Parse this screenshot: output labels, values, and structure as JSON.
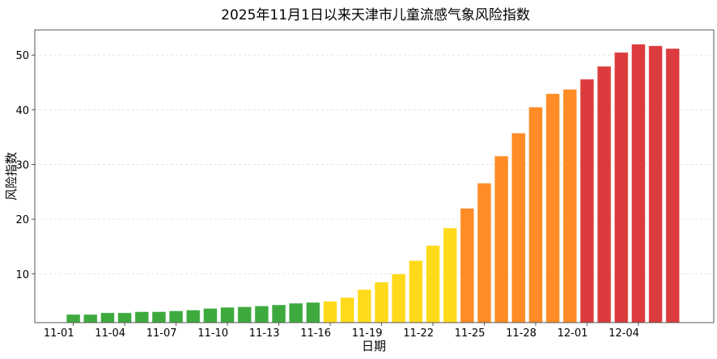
{
  "chart_data": {
    "type": "bar",
    "title": "2025年11月1日以来天津市儿童流感气象风险指数",
    "xlabel": "日期",
    "ylabel": "风险指数",
    "ylim": [
      1.1,
      54.6
    ],
    "yticks": [
      10,
      20,
      30,
      40,
      50
    ],
    "grid": "horizontal dashed",
    "categories": [
      "11-01",
      "11-02",
      "11-03",
      "11-04",
      "11-05",
      "11-06",
      "11-07",
      "11-08",
      "11-09",
      "11-10",
      "11-11",
      "11-12",
      "11-13",
      "11-14",
      "11-15",
      "11-16",
      "11-17",
      "11-18",
      "11-19",
      "11-20",
      "11-21",
      "11-22",
      "11-23",
      "11-24",
      "11-25",
      "11-26",
      "11-27",
      "11-28",
      "11-29",
      "11-30",
      "12-01",
      "12-02",
      "12-03",
      "12-04",
      "12-05",
      "12-06"
    ],
    "xtick_labels": [
      "11-01",
      "11-04",
      "11-07",
      "11-10",
      "11-13",
      "11-16",
      "11-19",
      "11-22",
      "11-25",
      "11-28",
      "12-01",
      "12-04"
    ],
    "values": [
      2.6,
      2.6,
      2.9,
      2.9,
      3.1,
      3.1,
      3.25,
      3.4,
      3.7,
      3.9,
      4.0,
      4.15,
      4.35,
      4.65,
      4.8,
      5.0,
      5.7,
      7.15,
      8.5,
      10.0,
      12.45,
      15.2,
      18.4,
      22.0,
      26.6,
      31.55,
      35.75,
      40.5,
      42.95,
      43.75,
      45.6,
      47.95,
      50.5,
      52.0,
      51.7,
      51.2
    ],
    "levels": [
      "green",
      "green",
      "green",
      "green",
      "green",
      "green",
      "green",
      "green",
      "green",
      "green",
      "green",
      "green",
      "green",
      "green",
      "green",
      "yellow",
      "yellow",
      "yellow",
      "yellow",
      "yellow",
      "yellow",
      "yellow",
      "yellow",
      "orange",
      "orange",
      "orange",
      "orange",
      "orange",
      "orange",
      "orange",
      "red",
      "red",
      "red",
      "red",
      "red",
      "red"
    ],
    "colors": {
      "green": "#3eaa3e",
      "yellow": "#ffda1a",
      "orange": "#ff8c26",
      "red": "#dc3b3d"
    }
  }
}
